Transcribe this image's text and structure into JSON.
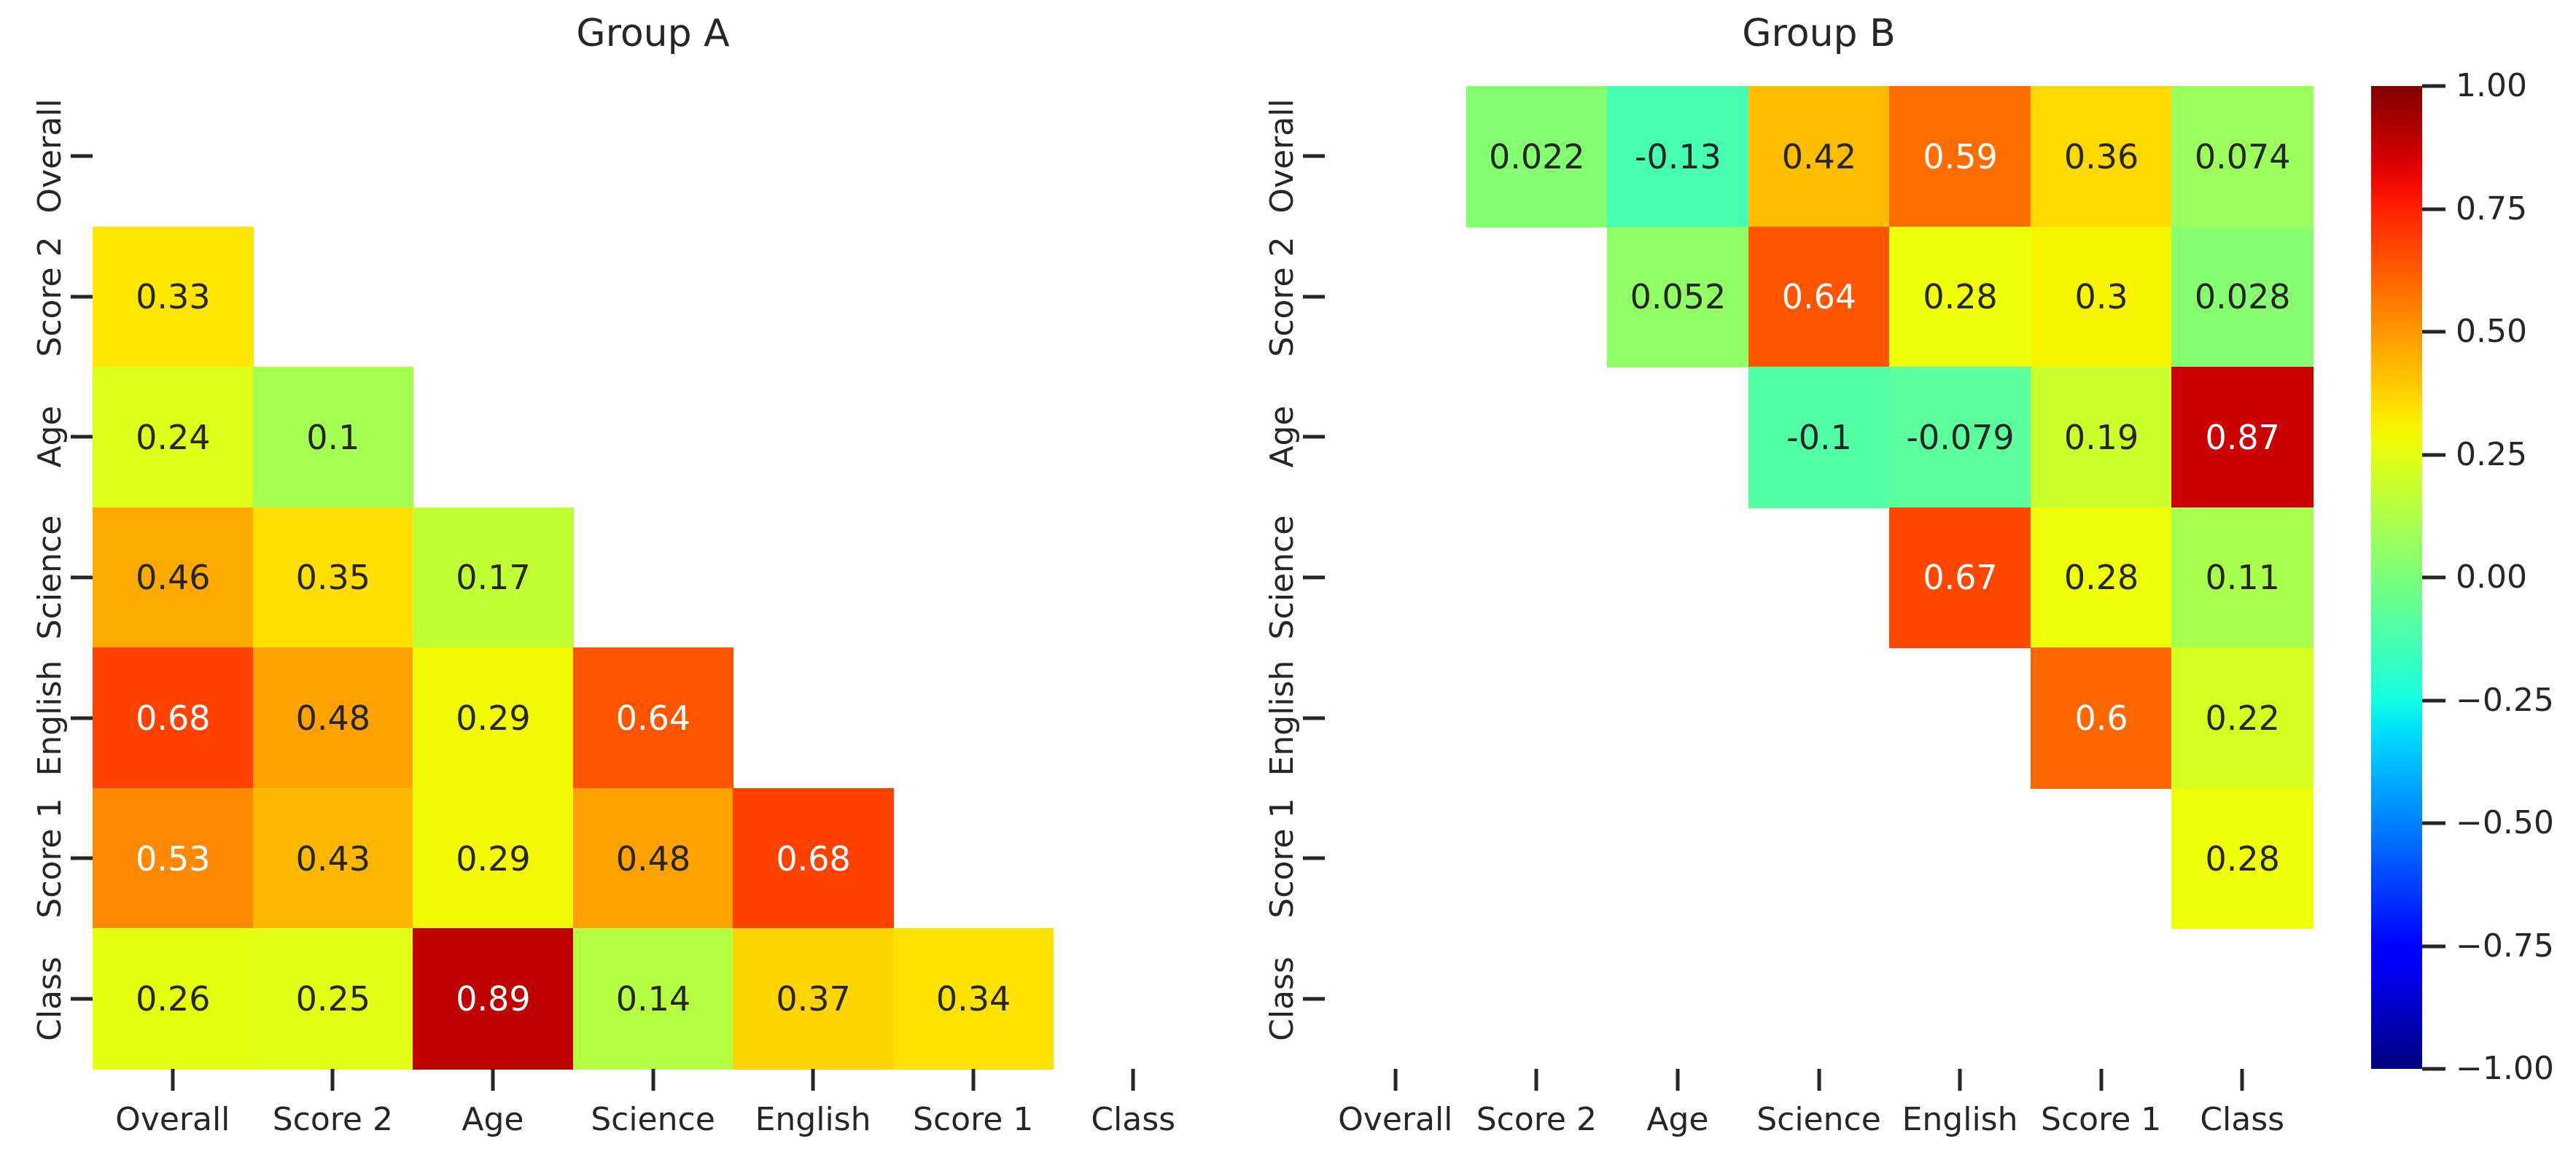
{
  "figure": {
    "background": "#ffffff"
  },
  "colors": {
    "background": "#ffffff",
    "tick_and_label_text": "#262626",
    "annotation_dark_text": "#262626",
    "annotation_light_text": "#ffffff"
  },
  "chart_data": [
    {
      "type": "heatmap",
      "title": "Group A",
      "categories": [
        "Overall",
        "Score 2",
        "Age",
        "Science",
        "English",
        "Score 1",
        "Class"
      ],
      "colormap": "jet",
      "vmin": -1,
      "vmax": 1,
      "mask": "upper triangle and diagonal hidden",
      "grid": false,
      "matrix": [
        [
          null,
          null,
          null,
          null,
          null,
          null,
          null
        ],
        [
          "0.33",
          null,
          null,
          null,
          null,
          null,
          null
        ],
        [
          "0.24",
          "0.1",
          null,
          null,
          null,
          null,
          null
        ],
        [
          "0.46",
          "0.35",
          "0.17",
          null,
          null,
          null,
          null
        ],
        [
          "0.68",
          "0.48",
          "0.29",
          "0.64",
          null,
          null,
          null
        ],
        [
          "0.53",
          "0.43",
          "0.29",
          "0.48",
          "0.68",
          null,
          null
        ],
        [
          "0.26",
          "0.25",
          "0.89",
          "0.14",
          "0.37",
          "0.34",
          null
        ]
      ]
    },
    {
      "type": "heatmap",
      "title": "Group B",
      "categories": [
        "Overall",
        "Score 2",
        "Age",
        "Science",
        "English",
        "Score 1",
        "Class"
      ],
      "colormap": "jet",
      "vmin": -1,
      "vmax": 1,
      "mask": "lower triangle and diagonal hidden",
      "grid": false,
      "matrix": [
        [
          null,
          "0.022",
          "-0.13",
          "0.42",
          "0.59",
          "0.36",
          "0.074"
        ],
        [
          null,
          null,
          "0.052",
          "0.64",
          "0.28",
          "0.3",
          "0.028"
        ],
        [
          null,
          null,
          null,
          "-0.1",
          "-0.079",
          "0.19",
          "0.87"
        ],
        [
          null,
          null,
          null,
          null,
          "0.67",
          "0.28",
          "0.11"
        ],
        [
          null,
          null,
          null,
          null,
          null,
          "0.6",
          "0.22"
        ],
        [
          null,
          null,
          null,
          null,
          null,
          null,
          "0.28"
        ],
        [
          null,
          null,
          null,
          null,
          null,
          null,
          null
        ]
      ]
    }
  ],
  "colorbar": {
    "orientation": "vertical",
    "colormap": "jet",
    "vmin": -1,
    "vmax": 1,
    "tick_labels": [
      "1.00",
      "0.75",
      "0.50",
      "0.25",
      "0.00",
      "−0.25",
      "−0.50",
      "−0.75",
      "−1.00"
    ]
  }
}
